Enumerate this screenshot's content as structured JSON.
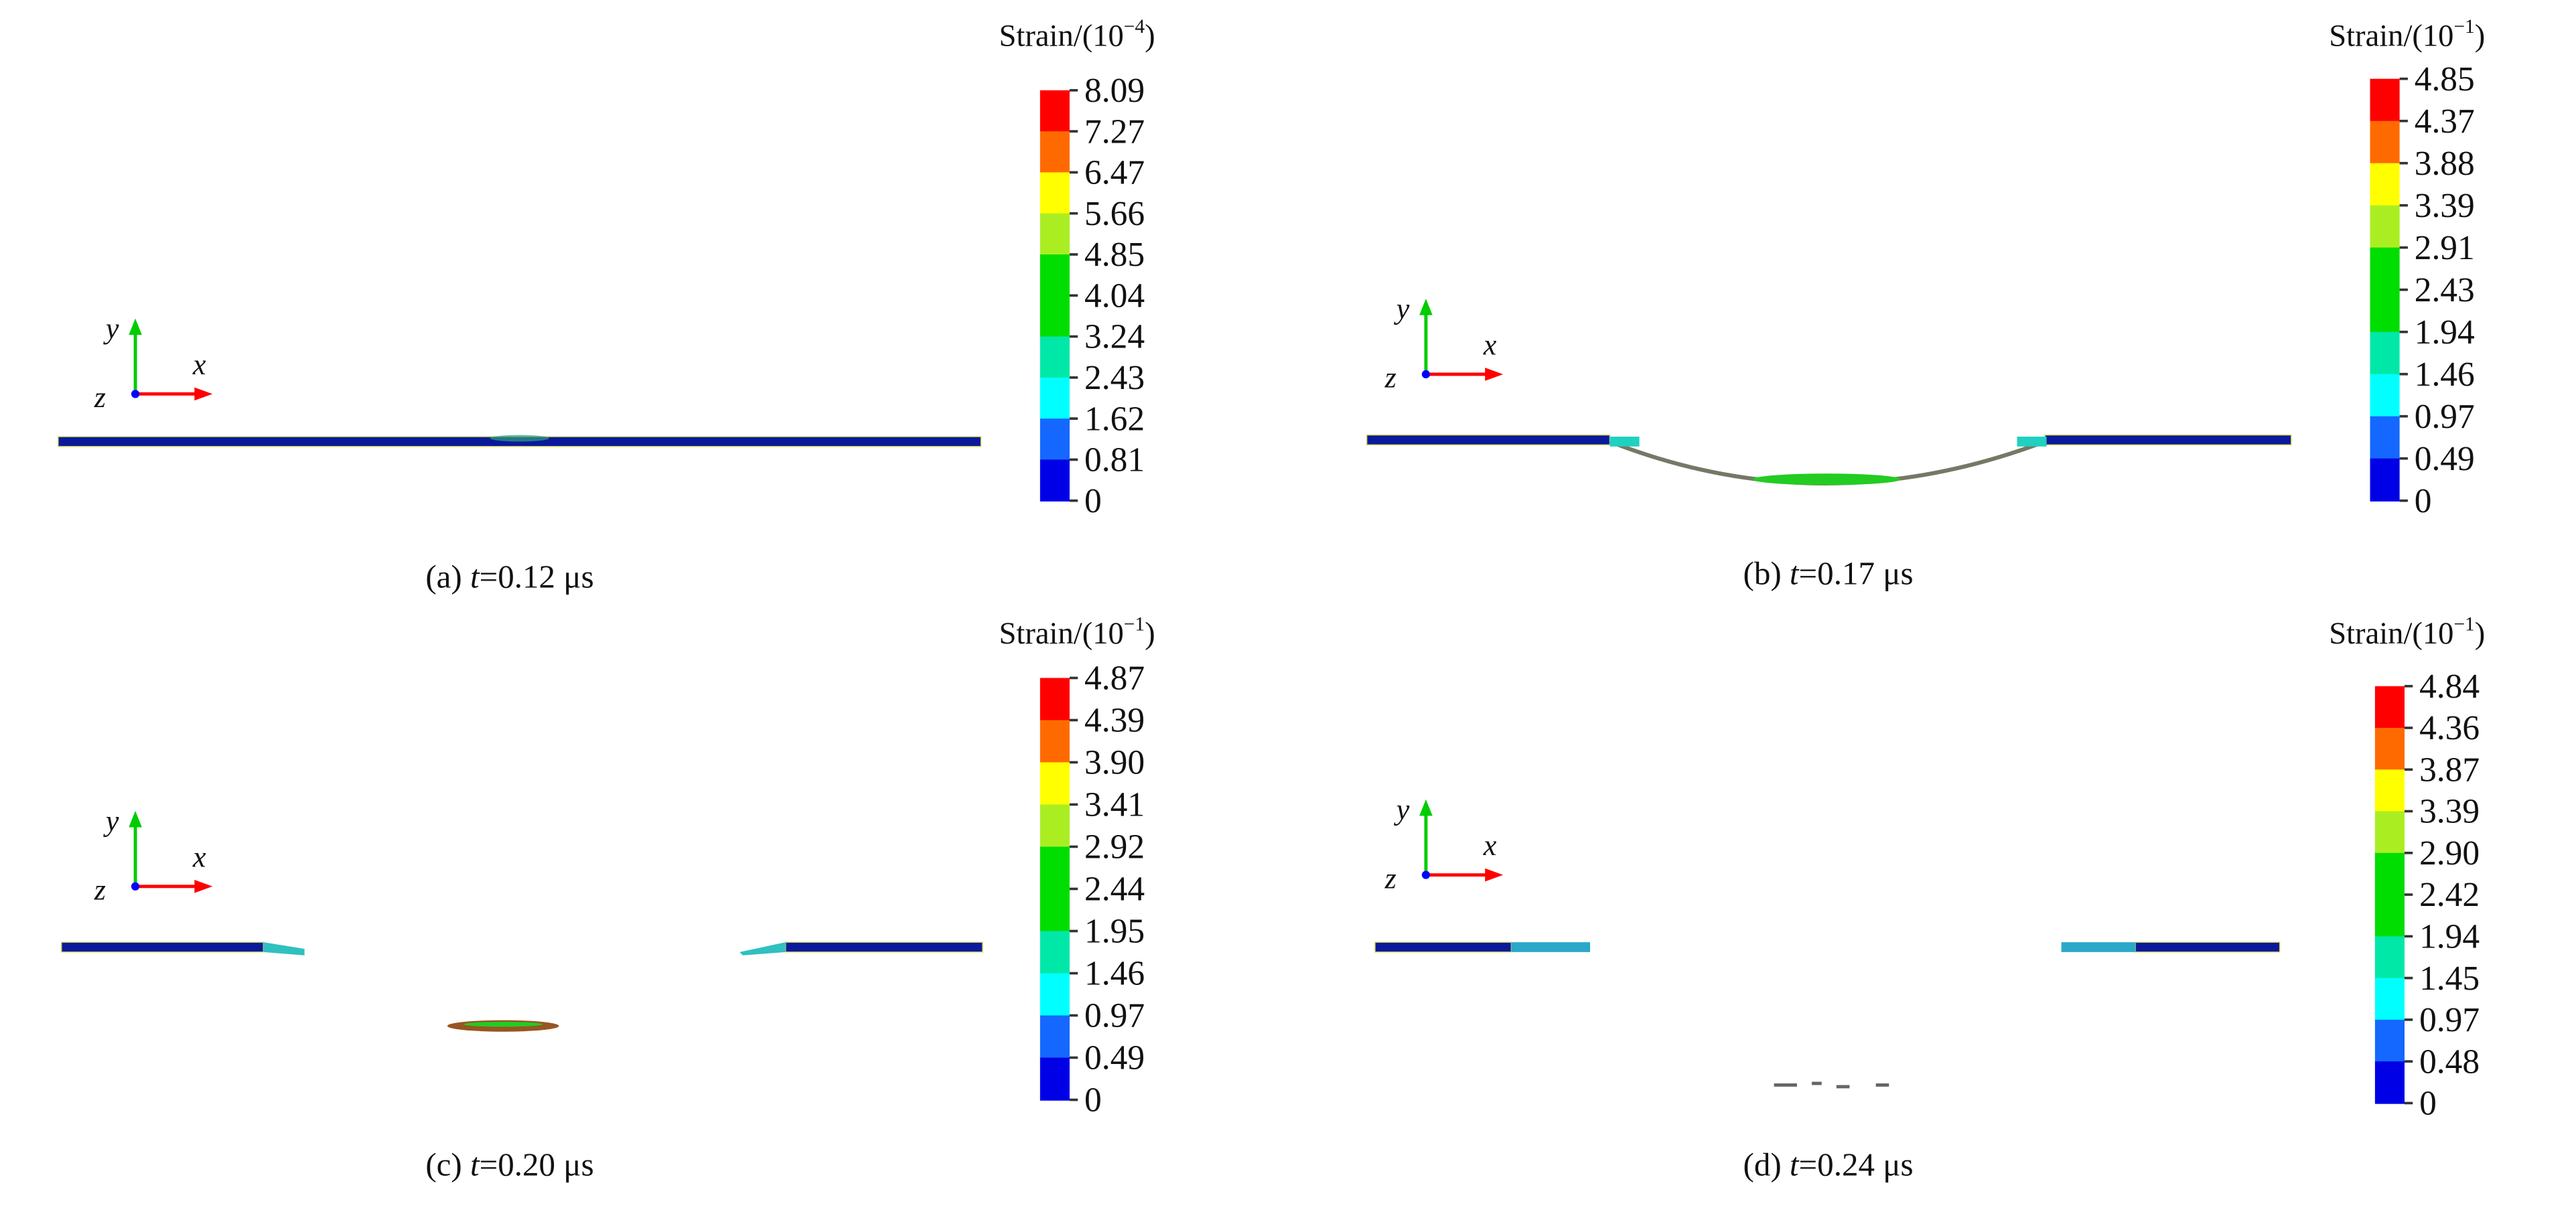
{
  "figure": {
    "panels": [
      {
        "id": "a",
        "caption": {
          "letter": "(a)",
          "var": "t",
          "value": "=0.12 μs"
        },
        "colorbar": {
          "title_prefix": "Strain/(10",
          "exponent": "−4",
          "title_suffix": ")",
          "ticks": [
            "8.09",
            "7.27",
            "6.47",
            "5.66",
            "4.85",
            "4.04",
            "3.24",
            "2.43",
            "1.62",
            "0.81",
            "0"
          ]
        },
        "state": "intact plate"
      },
      {
        "id": "b",
        "caption": {
          "letter": "(b)",
          "var": "t",
          "value": "=0.17 μs"
        },
        "colorbar": {
          "title_prefix": "Strain/(10",
          "exponent": "−1",
          "title_suffix": ")",
          "ticks": [
            "4.85",
            "4.37",
            "3.88",
            "3.39",
            "2.91",
            "2.43",
            "1.94",
            "1.46",
            "0.97",
            "0.49",
            "0"
          ]
        },
        "state": "bulging plate"
      },
      {
        "id": "c",
        "caption": {
          "letter": "(c)",
          "var": "t",
          "value": "=0.20 μs"
        },
        "colorbar": {
          "title_prefix": "Strain/(10",
          "exponent": "−1",
          "title_suffix": ")",
          "ticks": [
            "4.87",
            "4.39",
            "3.90",
            "3.41",
            "2.92",
            "2.44",
            "1.95",
            "1.46",
            "0.97",
            "0.49",
            "0"
          ]
        },
        "state": "plug ejected"
      },
      {
        "id": "d",
        "caption": {
          "letter": "(d)",
          "var": "t",
          "value": "=0.24 μs"
        },
        "colorbar": {
          "title_prefix": "Strain/(10",
          "exponent": "−1",
          "title_suffix": ")",
          "ticks": [
            "4.84",
            "4.36",
            "3.87",
            "3.39",
            "2.90",
            "2.42",
            "1.94",
            "1.45",
            "0.97",
            "0.48",
            "0"
          ]
        },
        "state": "fragmented plug"
      }
    ],
    "axes_labels": {
      "x": "x",
      "y": "y",
      "z": "z"
    },
    "colormap": [
      "#ff0000",
      "#ff6a00",
      "#ffff00",
      "#aaee22",
      "#00dd00",
      "#00dd00",
      "#00e8a8",
      "#00ffff",
      "#1468ff",
      "#0000e6"
    ],
    "plate_color": "#0a1a9a",
    "axis_colors": {
      "x": "#ff0000",
      "y": "#00cc00",
      "z": "#0000ff"
    }
  }
}
